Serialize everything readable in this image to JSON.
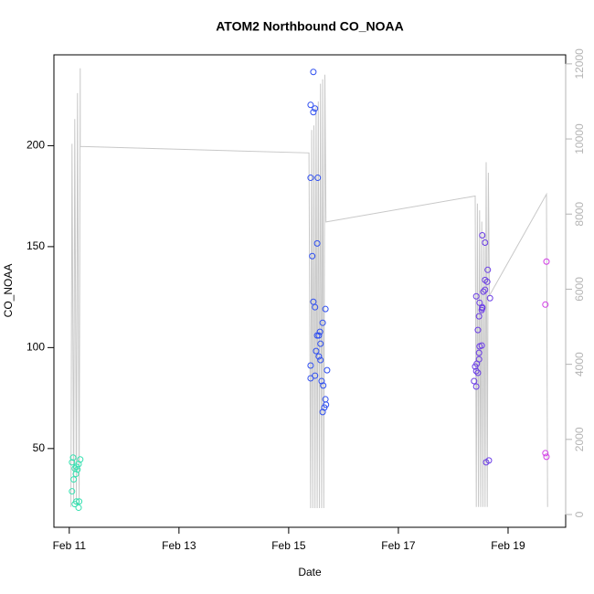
{
  "chart_data": {
    "type": "scatter",
    "title": "ATOM2 Northbound CO_NOAA",
    "x_label": "Date",
    "y_label": "CO_NOAA",
    "xlim": [
      10.72,
      20.05
    ],
    "xticks": [
      {
        "value": 11,
        "label": "Feb 11"
      },
      {
        "value": 13,
        "label": "Feb 13"
      },
      {
        "value": 15,
        "label": "Feb 15"
      },
      {
        "value": 17,
        "label": "Feb 17"
      },
      {
        "value": 19,
        "label": "Feb 19"
      }
    ],
    "ylim": [
      11,
      245
    ],
    "yticks": [
      50,
      100,
      150,
      200
    ],
    "y2lim": [
      -340,
      12240
    ],
    "y2ticks": [
      0,
      2000,
      4000,
      6000,
      8000,
      10000,
      12000
    ],
    "grid": false,
    "series": [
      {
        "type": "line",
        "axis": "y2",
        "color": "#c8c8c8",
        "x": [
          11.03,
          11.05,
          11.08,
          11.1,
          11.13,
          11.15,
          11.18,
          11.2,
          11.2,
          15.37,
          15.4,
          15.42,
          15.44,
          15.46,
          15.48,
          15.5,
          15.52,
          15.54,
          15.56,
          15.58,
          15.6,
          15.62,
          15.64,
          15.66,
          15.68,
          18.4,
          18.42,
          18.44,
          18.46,
          18.48,
          18.5,
          18.52,
          18.54,
          18.56,
          18.58,
          18.6,
          18.62,
          18.64,
          18.66,
          19.7,
          19.72
        ],
        "values": [
          200,
          9870,
          300,
          10530,
          250,
          11220,
          250,
          11880,
          9800,
          9630,
          170,
          10240,
          170,
          10360,
          170,
          10850,
          170,
          11000,
          170,
          11470,
          170,
          11590,
          170,
          11710,
          7790,
          8480,
          200,
          8280,
          200,
          8100,
          200,
          7800,
          200,
          7500,
          200,
          9380,
          200,
          9100,
          5830,
          8530,
          200
        ]
      },
      {
        "type": "scatter",
        "color": "#36e0b0",
        "x": [
          11.07,
          11.05,
          11.05,
          11.08,
          11.1,
          11.13,
          11.17,
          11.2,
          11.13,
          11.1,
          11.18,
          11.17,
          11.12,
          11.15
        ],
        "values": [
          45.5,
          43.2,
          28.8,
          34.7,
          40.1,
          41,
          42.3,
          44.6,
          23.8,
          22.5,
          23.8,
          20.7,
          37.4,
          39.6
        ]
      },
      {
        "type": "scatter",
        "color": "#2f4ff0",
        "x": [
          15.45,
          15.4,
          15.48,
          15.45,
          15.4,
          15.53,
          15.52,
          15.43,
          15.45,
          15.48,
          15.67,
          15.62,
          15.57,
          15.52,
          15.55,
          15.58,
          15.5,
          15.55,
          15.58,
          15.4,
          15.7,
          15.48,
          15.4,
          15.6,
          15.63,
          15.67,
          15.68,
          15.65,
          15.62
        ],
        "values": [
          236.5,
          220.2,
          218.4,
          216.6,
          184.1,
          184.1,
          151.6,
          145.3,
          122.7,
          120,
          119.1,
          112.3,
          107.8,
          106,
          106,
          101.9,
          98.3,
          95.6,
          93.8,
          91.1,
          88.8,
          86.1,
          84.8,
          83.4,
          81.2,
          74.4,
          71.7,
          70.3,
          68.1
        ]
      },
      {
        "type": "scatter",
        "color": "#6b3de6",
        "x": [
          18.42,
          18.48,
          18.53,
          18.47,
          18.52,
          18.55,
          18.58,
          18.63,
          18.62,
          18.67,
          18.53,
          18.58,
          18.45,
          18.52,
          18.48,
          18.47,
          18.47,
          18.43,
          18.4,
          18.42,
          18.45,
          18.38,
          18.42,
          18.6,
          18.65,
          18.58,
          18.53
        ],
        "values": [
          125.4,
          122.2,
          119.5,
          115.5,
          118.6,
          127.7,
          133.5,
          138.5,
          132.6,
          124.5,
          155.6,
          152,
          108.7,
          101,
          100.6,
          97.4,
          94.2,
          92,
          90.6,
          88.4,
          87.5,
          83.4,
          80.7,
          43.2,
          44.1,
          128.6,
          120
        ]
      },
      {
        "type": "scatter",
        "color": "#d23ce6",
        "x": [
          19.7,
          19.68,
          19.68,
          19.7
        ],
        "values": [
          142.6,
          121.3,
          47.7,
          45.9
        ]
      }
    ]
  }
}
